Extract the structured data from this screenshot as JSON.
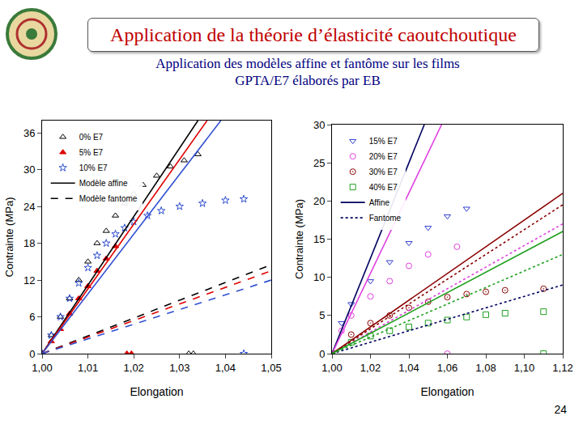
{
  "header": {
    "title": "Application de la théorie d’élasticité caoutchoutique"
  },
  "subtitle": [
    "Application des modèles affine et fantôme sur les films",
    "GPTA/E7 élaborés par EB"
  ],
  "page_number": "24",
  "chart_data": [
    {
      "type": "scatter",
      "x_label": "Elongation",
      "y_label": "Contrainte (MPa)",
      "legend": "top left",
      "grid": false,
      "xlim": [
        1.0,
        1.05
      ],
      "xticks": [
        {
          "value": 1.0,
          "label": "1,00"
        },
        {
          "value": 1.01,
          "label": "1,01"
        },
        {
          "value": 1.02,
          "label": "1,02"
        },
        {
          "value": 1.03,
          "label": "1,03"
        },
        {
          "value": 1.04,
          "label": "1,04"
        },
        {
          "value": 1.05,
          "label": "1,05"
        }
      ],
      "ylim": [
        0,
        38
      ],
      "yticks": [
        0,
        6,
        12,
        18,
        24,
        30,
        36
      ],
      "series": [
        {
          "name": "0% E7",
          "color": "#000000",
          "marker": "triangle-up-open",
          "x": [
            1.0,
            1.002,
            1.004,
            1.006,
            1.008,
            1.01,
            1.012,
            1.014,
            1.016,
            1.018,
            1.02,
            1.022,
            1.025,
            1.028,
            1.031,
            1.034,
            1.032,
            1.033
          ],
          "values": [
            0,
            3,
            6,
            9,
            12,
            15,
            18,
            20,
            22.5,
            24.5,
            26,
            27.5,
            29,
            30.5,
            31.5,
            32.5,
            0,
            0
          ]
        },
        {
          "name": "5% E7",
          "color": "#e00000",
          "marker": "triangle-up",
          "x": [
            1.0,
            1.002,
            1.004,
            1.006,
            1.008,
            1.01,
            1.012,
            1.014,
            1.016,
            1.0185,
            1.0195
          ],
          "values": [
            0,
            2,
            4,
            6.5,
            9,
            11,
            13.5,
            15.5,
            17.5,
            0,
            0
          ]
        },
        {
          "name": "10% E7",
          "color": "#3050d0",
          "marker": "star-open",
          "x": [
            1.0,
            1.002,
            1.004,
            1.006,
            1.008,
            1.01,
            1.012,
            1.014,
            1.016,
            1.018,
            1.02,
            1.023,
            1.026,
            1.03,
            1.035,
            1.04,
            1.044,
            1.044
          ],
          "values": [
            0,
            3,
            6,
            9,
            11.5,
            14,
            16,
            18,
            19.5,
            20.5,
            21.5,
            22.5,
            23.3,
            24,
            24.5,
            25,
            25.2,
            0
          ]
        },
        {
          "name": "Modèle affine",
          "type": "line",
          "line_style": "solid",
          "color": "#000000",
          "x": [
            1.0,
            1.034
          ],
          "values": [
            0,
            38
          ]
        },
        {
          "name": "Modèle fantome",
          "type": "line",
          "line_style": "dash",
          "color": "#000000",
          "x": [
            1.0,
            1.05
          ],
          "values": [
            0,
            14.5
          ]
        },
        {
          "type": "line",
          "line_style": "solid",
          "color": "#e00000",
          "x": [
            1.0,
            1.036
          ],
          "values": [
            0,
            38
          ]
        },
        {
          "type": "line",
          "line_style": "dash",
          "color": "#e00000",
          "x": [
            1.0,
            1.05
          ],
          "values": [
            0,
            13.5
          ]
        },
        {
          "type": "line",
          "line_style": "solid",
          "color": "#3050d0",
          "x": [
            1.0,
            1.039
          ],
          "values": [
            0,
            38
          ]
        },
        {
          "type": "line",
          "line_style": "dash",
          "color": "#3050d0",
          "x": [
            1.0,
            1.05
          ],
          "values": [
            0,
            12
          ]
        }
      ]
    },
    {
      "type": "scatter",
      "x_label": "Elongation",
      "y_label": "Contrainte (MPa)",
      "legend": "top left",
      "grid": false,
      "xlim": [
        1.0,
        1.12
      ],
      "xticks": [
        {
          "value": 1.0,
          "label": "1,00"
        },
        {
          "value": 1.02,
          "label": "1,02"
        },
        {
          "value": 1.04,
          "label": "1,04"
        },
        {
          "value": 1.06,
          "label": "1,06"
        },
        {
          "value": 1.08,
          "label": "1,08"
        },
        {
          "value": 1.1,
          "label": "1,10"
        },
        {
          "value": 1.12,
          "label": "1,12"
        }
      ],
      "ylim": [
        0,
        30
      ],
      "yticks": [
        0,
        5,
        10,
        15,
        20,
        25,
        30
      ],
      "series": [
        {
          "name": "15% E7",
          "color": "#3040d0",
          "marker": "triangle-down-open",
          "x": [
            1.0,
            1.005,
            1.01,
            1.02,
            1.03,
            1.04,
            1.05,
            1.06,
            1.07
          ],
          "values": [
            0,
            4,
            6.5,
            9.5,
            12,
            14.5,
            16.5,
            18,
            19
          ]
        },
        {
          "name": "20% E7",
          "color": "#e040e0",
          "marker": "circle-open",
          "x": [
            1.0,
            1.005,
            1.01,
            1.02,
            1.03,
            1.04,
            1.05,
            1.065,
            1.06
          ],
          "values": [
            0,
            3,
            5,
            7.5,
            9.5,
            11.5,
            13,
            14,
            0
          ]
        },
        {
          "name": "30% E7",
          "color": "#8b0000",
          "marker": "circle-open-dot",
          "x": [
            1.0,
            1.01,
            1.02,
            1.03,
            1.04,
            1.05,
            1.06,
            1.07,
            1.08,
            1.09,
            1.11
          ],
          "values": [
            0,
            2.5,
            4,
            5,
            6,
            6.8,
            7.4,
            7.8,
            8.1,
            8.3,
            8.5
          ]
        },
        {
          "name": "40% E7",
          "color": "#20a020",
          "marker": "square-open",
          "x": [
            1.0,
            1.01,
            1.02,
            1.03,
            1.04,
            1.05,
            1.06,
            1.07,
            1.08,
            1.09,
            1.11,
            1.11
          ],
          "values": [
            0,
            1.5,
            2.3,
            3,
            3.5,
            4,
            4.4,
            4.8,
            5.1,
            5.3,
            5.5,
            0
          ]
        },
        {
          "name": "Affine",
          "type": "line",
          "line_style": "solid",
          "color": "#000060",
          "x": [
            1.0,
            1.048
          ],
          "values": [
            0,
            30
          ]
        },
        {
          "name": "Fantome",
          "type": "line",
          "line_style": "dot",
          "color": "#000060",
          "x": [
            1.0,
            1.12
          ],
          "values": [
            0,
            9
          ]
        },
        {
          "type": "line",
          "line_style": "solid",
          "color": "#e040e0",
          "x": [
            1.0,
            1.057
          ],
          "values": [
            0,
            30
          ]
        },
        {
          "type": "line",
          "line_style": "dot",
          "color": "#e040e0",
          "x": [
            1.0,
            1.12
          ],
          "values": [
            0,
            17
          ]
        },
        {
          "type": "line",
          "line_style": "solid",
          "color": "#8b0000",
          "x": [
            1.0,
            1.12
          ],
          "values": [
            0,
            21
          ]
        },
        {
          "type": "line",
          "line_style": "dot",
          "color": "#8b0000",
          "x": [
            1.0,
            1.12
          ],
          "values": [
            0,
            19.5
          ]
        },
        {
          "type": "line",
          "line_style": "solid",
          "color": "#20a020",
          "x": [
            1.0,
            1.12
          ],
          "values": [
            0,
            16
          ]
        },
        {
          "type": "line",
          "line_style": "dot",
          "color": "#20a020",
          "x": [
            1.0,
            1.12
          ],
          "values": [
            0,
            13
          ]
        }
      ]
    }
  ]
}
